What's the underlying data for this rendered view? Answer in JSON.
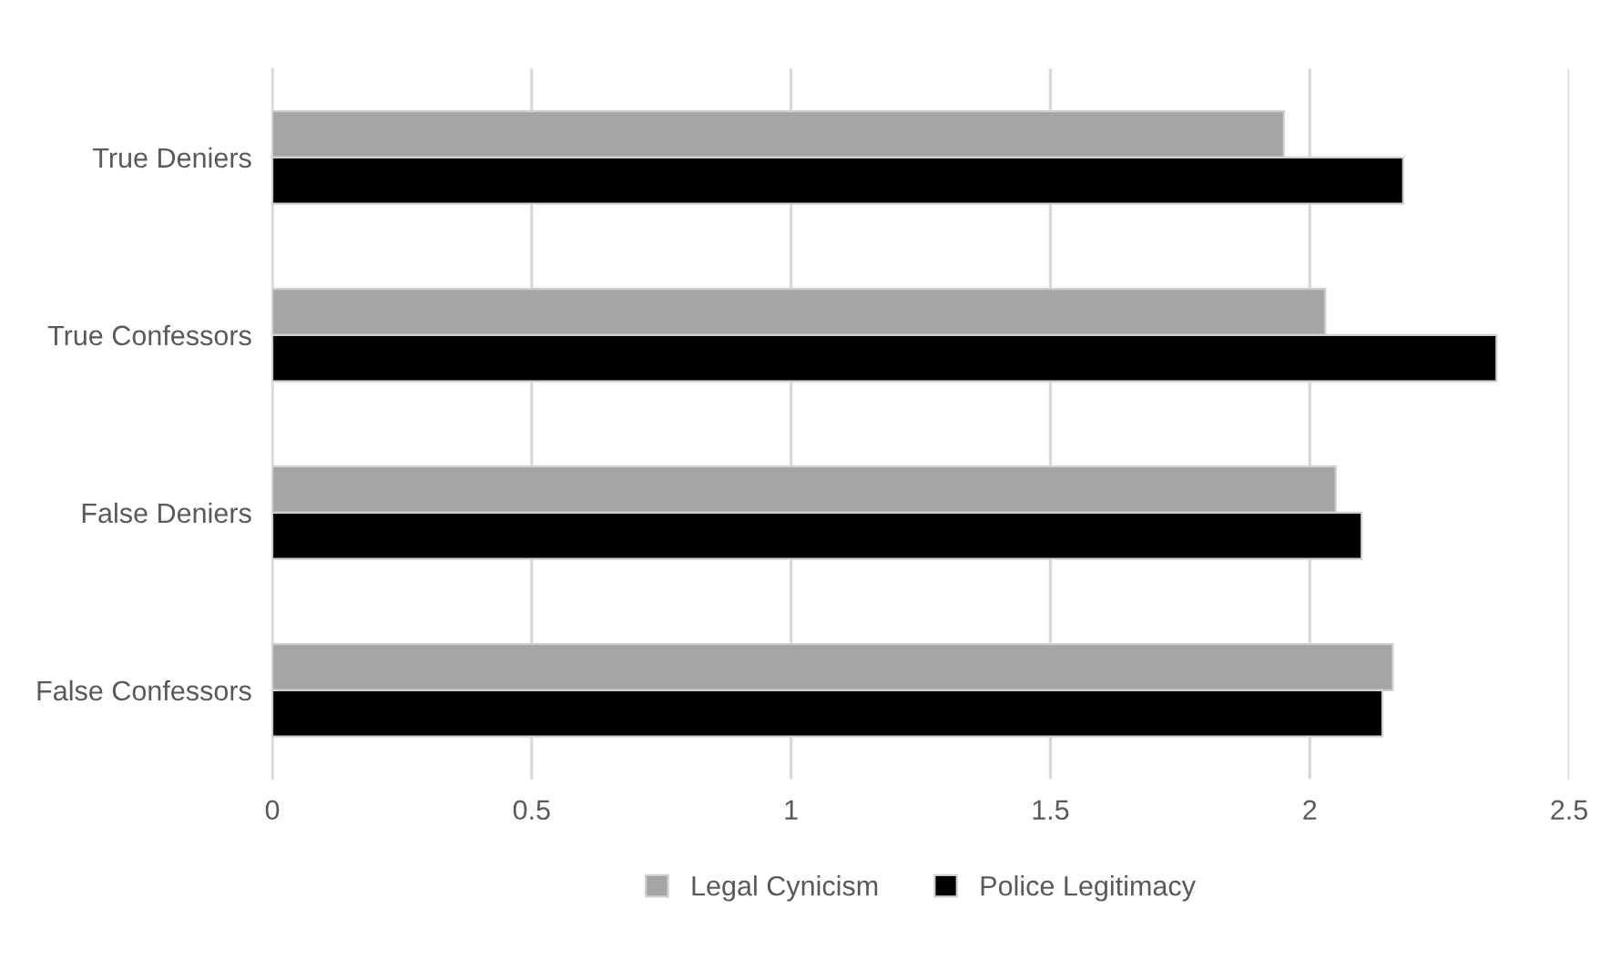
{
  "chart_data": {
    "type": "bar",
    "orientation": "horizontal",
    "categories": [
      "True Deniers",
      "True Confessors",
      "False Deniers",
      "False Confessors"
    ],
    "series": [
      {
        "name": "Legal Cynicism",
        "color": "#a5a5a5",
        "values": [
          1.95,
          2.03,
          2.05,
          2.16
        ]
      },
      {
        "name": "Police Legitimacy",
        "color": "#000000",
        "values": [
          2.18,
          2.36,
          2.1,
          2.14
        ]
      }
    ],
    "xlim": [
      0,
      2.5
    ],
    "xticks": [
      0,
      0.5,
      1,
      1.5,
      2,
      2.5
    ],
    "grid": "x",
    "legend": "bottom"
  }
}
